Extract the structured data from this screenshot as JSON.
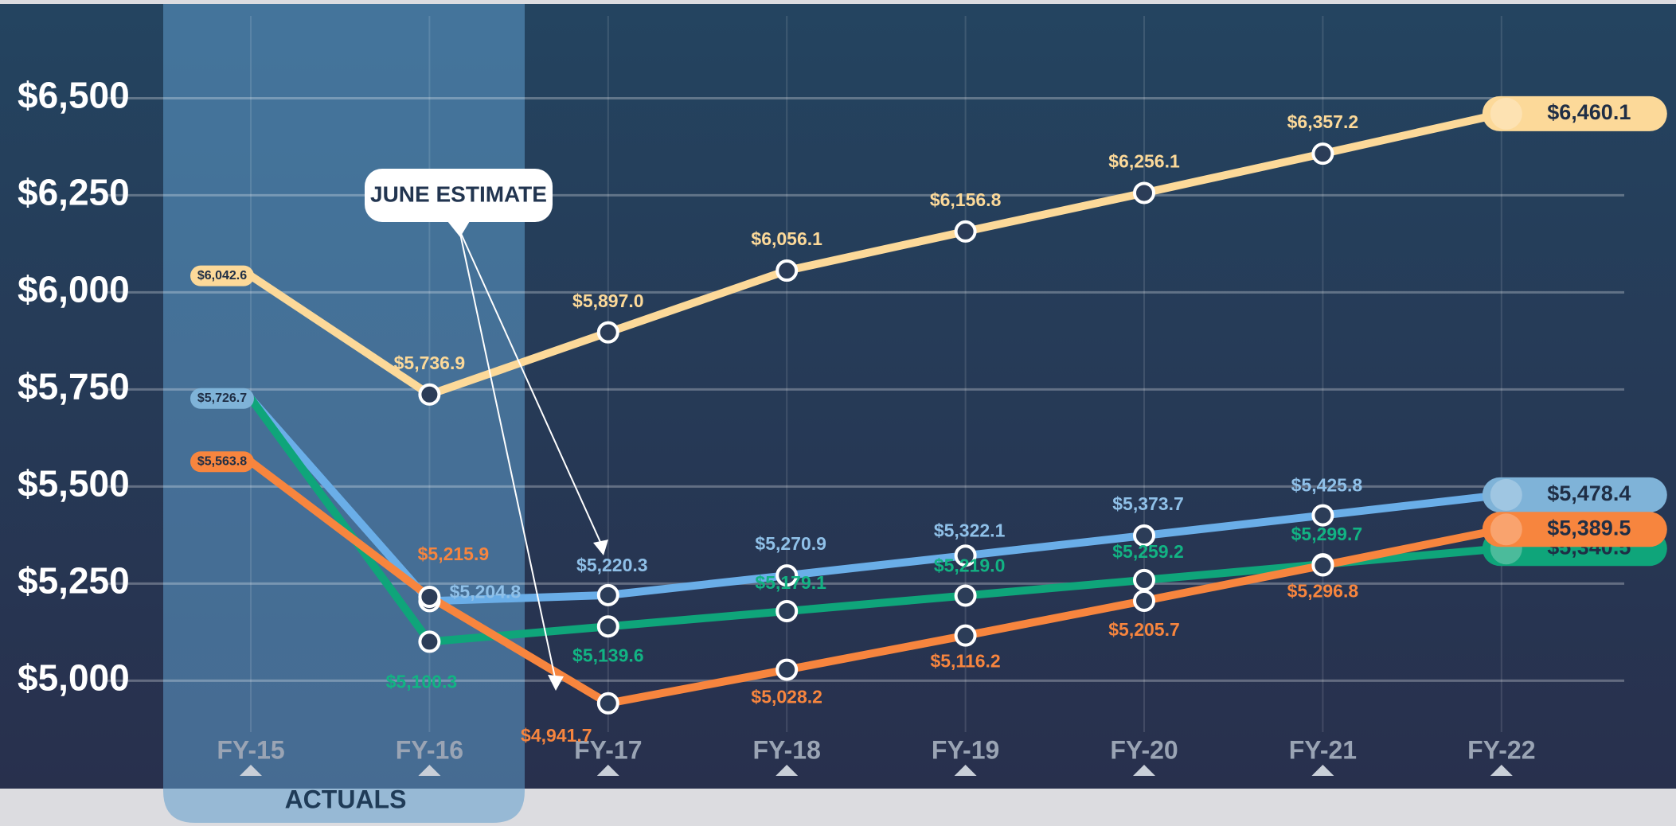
{
  "chart_data": {
    "type": "line",
    "categories": [
      "FY-15",
      "FY-16",
      "FY-17",
      "FY-18",
      "FY-19",
      "FY-20",
      "FY-21",
      "FY-22"
    ],
    "series": [
      {
        "color": "#fcd999",
        "values": [
          6042.6,
          5736.9,
          5897.0,
          6056.1,
          6156.8,
          6256.1,
          6357.2,
          6460.1
        ],
        "value_labels": [
          "$6,042.6",
          "$5,736.9",
          "$5,897.0",
          "$6,056.1",
          "$6,156.8",
          "$6,256.1",
          "$6,357.2",
          "$6,460.1"
        ]
      },
      {
        "color": "#6aaee8",
        "values": [
          5726.7,
          5204.8,
          5220.3,
          5270.9,
          5322.1,
          5373.7,
          5425.8,
          5478.4
        ],
        "value_labels": [
          "$5,726.7",
          "$5,204.8",
          "$5,220.3",
          "$5,270.9",
          "$5,322.1",
          "$5,373.7",
          "$5,425.8",
          "$5,478.4"
        ]
      },
      {
        "color": "#0fa57a",
        "values": [
          5726.7,
          5100.3,
          5139.6,
          5179.1,
          5219.0,
          5259.2,
          5299.7,
          5340.5
        ],
        "value_labels": [
          null,
          "$5,100.3",
          "$5,139.6",
          "$5,179.1",
          "$5,219.0",
          "$5,259.2",
          "$5,299.7",
          "$5,340.5"
        ]
      },
      {
        "color": "#f7853e",
        "values": [
          5563.8,
          5215.9,
          4941.7,
          5028.2,
          5116.2,
          5205.7,
          5296.8,
          5389.5
        ],
        "value_labels": [
          "$5,563.8",
          "$5,215.9",
          "$4,941.7",
          "$5,028.2",
          "$5,116.2",
          "$5,205.7",
          "$5,296.8",
          "$5,389.5"
        ]
      }
    ],
    "ylim": [
      4722,
      6753
    ],
    "yticks": [
      {
        "value": 5000,
        "label": "$5,000"
      },
      {
        "value": 5250,
        "label": "$5,250"
      },
      {
        "value": 5500,
        "label": "$5,500"
      },
      {
        "value": 5750,
        "label": "$5,750"
      },
      {
        "value": 6000,
        "label": "$6,000"
      },
      {
        "value": 6250,
        "label": "$6,250"
      },
      {
        "value": 6500,
        "label": "$6,500"
      }
    ],
    "grid": true,
    "annotations": [
      "JUNE ESTIMATE",
      "ACTUALS"
    ]
  }
}
